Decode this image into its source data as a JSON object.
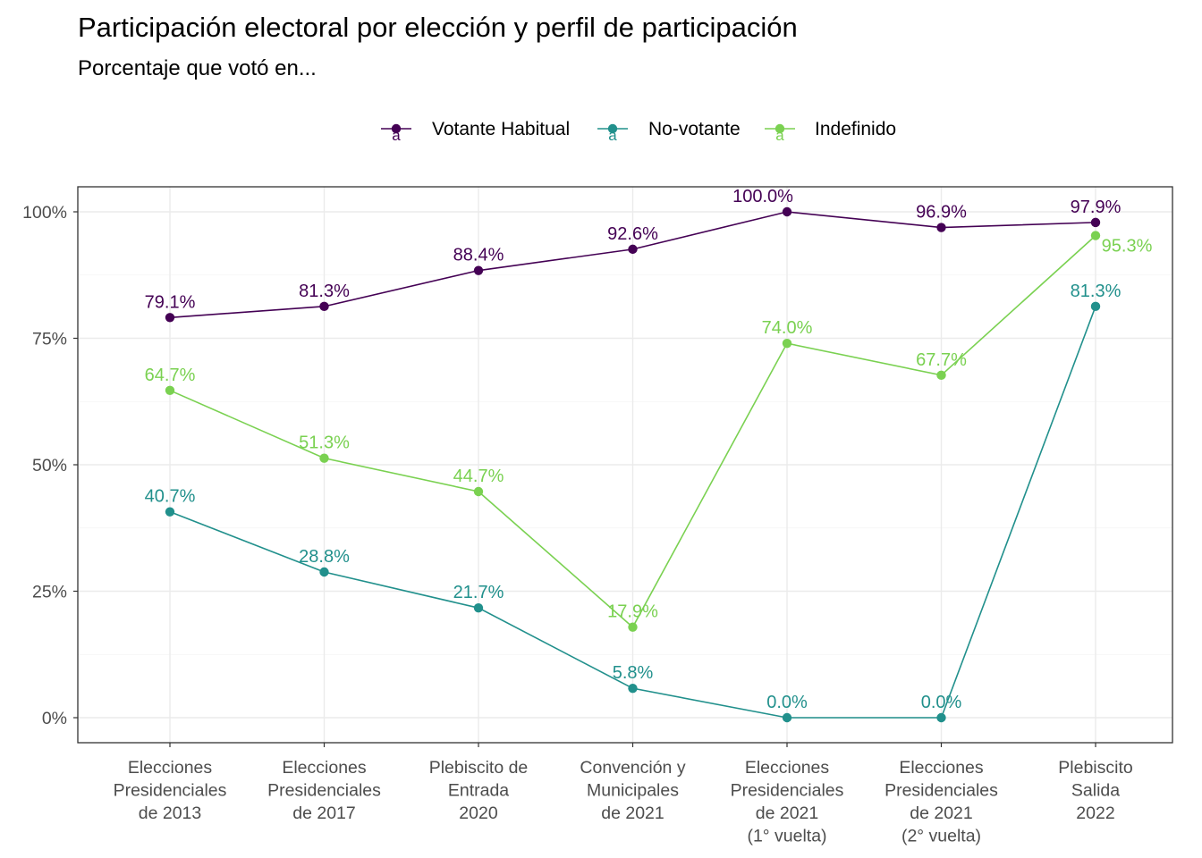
{
  "chart_data": {
    "type": "line",
    "title": "Participación electoral por elección y perfil de participación",
    "subtitle": "Porcentaje que votó en...",
    "ylim": [
      0,
      1
    ],
    "yticks": [
      0,
      0.25,
      0.5,
      0.75,
      1
    ],
    "ytick_labels": [
      "0%",
      "25%",
      "50%",
      "75%",
      "100%"
    ],
    "grid": true,
    "legend_position": "top",
    "legend_key_glyph": "a",
    "categories": [
      [
        "Elecciones",
        "Presidenciales",
        "de 2013"
      ],
      [
        "Elecciones",
        "Presidenciales",
        "de 2017"
      ],
      [
        "Plebiscito de",
        "Entrada",
        "2020"
      ],
      [
        "Convención y",
        "Municipales",
        "de 2021"
      ],
      [
        "Elecciones",
        "Presidenciales",
        "de 2021",
        "(1° vuelta)"
      ],
      [
        "Elecciones",
        "Presidenciales",
        "de 2021",
        "(2° vuelta)"
      ],
      [
        "Plebiscito",
        "Salida",
        "2022"
      ]
    ],
    "series": [
      {
        "name": "Votante Habitual",
        "color": "#440154",
        "values": [
          0.791,
          0.813,
          0.884,
          0.926,
          1.0,
          0.969,
          0.979
        ],
        "labels": [
          "79.1%",
          "81.3%",
          "88.4%",
          "92.6%",
          "100.0%",
          "96.9%",
          "97.9%"
        ]
      },
      {
        "name": "No-votante",
        "color": "#21908C",
        "values": [
          0.407,
          0.288,
          0.217,
          0.058,
          0.0,
          0.0,
          0.813
        ],
        "labels": [
          "40.7%",
          "28.8%",
          "21.7%",
          "5.8%",
          "0.0%",
          "0.0%",
          "81.3%"
        ]
      },
      {
        "name": "Indefinido",
        "color": "#7AD151",
        "values": [
          0.647,
          0.513,
          0.447,
          0.179,
          0.74,
          0.677,
          0.953
        ],
        "labels": [
          "64.7%",
          "51.3%",
          "44.7%",
          "17.9%",
          "74.0%",
          "67.7%",
          "95.3%"
        ]
      }
    ]
  }
}
